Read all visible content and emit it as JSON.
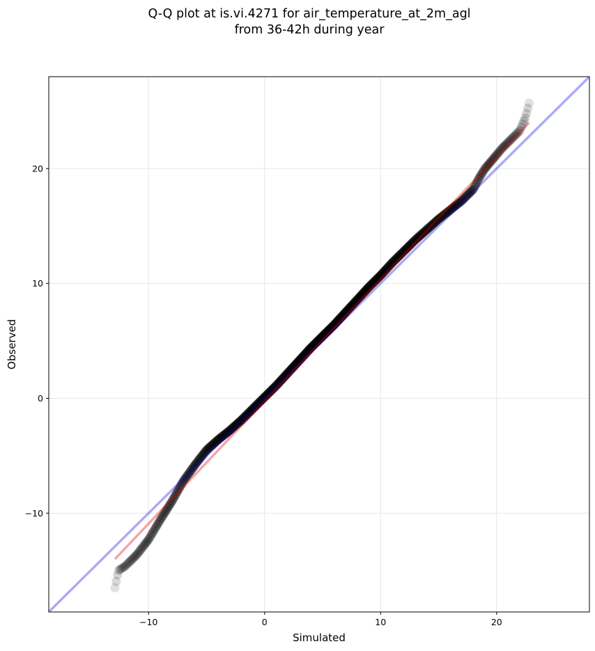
{
  "chart_data": {
    "type": "scatter",
    "title_lines": [
      "Q-Q plot at is.vi.4271 for air_temperature_at_2m_agl",
      "from 36-42h during year"
    ],
    "xlabel": "Simulated",
    "ylabel": "Observed",
    "xlim": [
      -18.6,
      28.0
    ],
    "ylim": [
      -18.6,
      28.0
    ],
    "xticks": [
      -10,
      0,
      10,
      20
    ],
    "yticks": [
      -10,
      0,
      10,
      20
    ],
    "xtick_labels": [
      "−10",
      "0",
      "10",
      "20"
    ],
    "ytick_labels": [
      "−10",
      "0",
      "10",
      "20"
    ],
    "grid": true,
    "series": [
      {
        "kind": "scatter",
        "color": "#000000",
        "quantiles_sim": [
          -12.9,
          -12.6,
          -12.0,
          -11.0,
          -10.0,
          -9.0,
          -8.0,
          -7.0,
          -6.0,
          -5.0,
          -4.0,
          -3.0,
          -2.0,
          -1.0,
          0.0,
          1.0,
          2.0,
          3.0,
          4.0,
          5.0,
          6.0,
          7.0,
          8.0,
          9.0,
          10.0,
          11.0,
          12.0,
          13.0,
          14.0,
          15.0,
          16.0,
          17.0,
          18.0,
          18.5,
          19.0,
          19.5,
          20.0,
          20.5,
          21.0,
          21.5,
          22.0,
          22.5,
          22.8
        ],
        "quantiles_obs": [
          -16.5,
          -15.0,
          -14.6,
          -13.6,
          -12.3,
          -10.6,
          -9.0,
          -7.2,
          -5.8,
          -4.5,
          -3.6,
          -2.8,
          -1.9,
          -0.9,
          0.1,
          1.1,
          2.2,
          3.3,
          4.4,
          5.4,
          6.4,
          7.5,
          8.6,
          9.7,
          10.7,
          11.8,
          12.8,
          13.8,
          14.7,
          15.6,
          16.4,
          17.2,
          18.2,
          19.2,
          20.0,
          20.6,
          21.2,
          21.8,
          22.3,
          22.8,
          23.3,
          24.5,
          25.7
        ]
      },
      {
        "kind": "line",
        "role": "1:1 reference",
        "color": "#0000dd",
        "x": [
          -18.6,
          28.0
        ],
        "y": [
          -18.6,
          28.0
        ]
      },
      {
        "kind": "line",
        "role": "fit",
        "color": "#dd0000",
        "x": [
          -12.9,
          22.8
        ],
        "y": [
          -14.0,
          24.0
        ]
      }
    ]
  }
}
